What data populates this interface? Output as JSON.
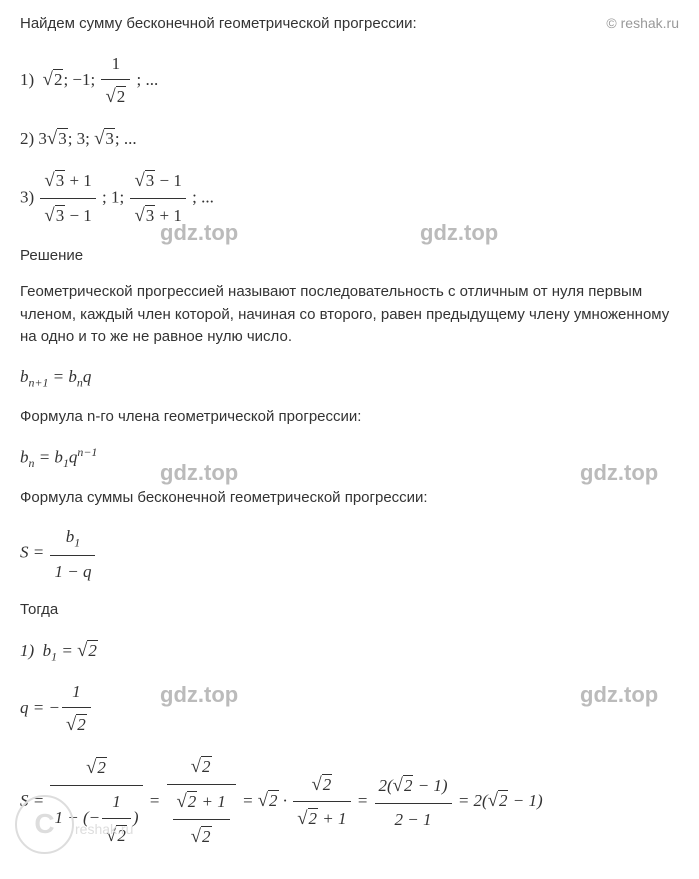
{
  "header": {
    "title": "Найдем сумму бесконечной геометрической прогрессии:",
    "copyright": "© reshak.ru"
  },
  "problems": {
    "p1_num": "1)",
    "p1_seq": "√2; −1; 1/√2 ; ...",
    "p2_num": "2)",
    "p2_seq": "3√3; 3; √3; ...",
    "p3_num": "3)",
    "p3_seq": "(√3+1)/(√3−1); 1; (√3−1)/(√3+1); ..."
  },
  "solution_label": "Решение",
  "theory": {
    "def1": "Геометрической прогрессией называют последовательность с отличным от нуля первым членом, каждый член которой, начиная со второго, равен предыдущему члену умноженному на одно и то же не равное нулю число.",
    "recur": "b_{n+1} = b_n q",
    "nth_label": "Формула n-го члена геометрической прогрессии:",
    "nth": "b_n = b_1 q^{n−1}",
    "sum_label": "Формула суммы бесконечной геометрической прогрессии:",
    "sum": "S = b_1 / (1 − q)",
    "then": "Тогда"
  },
  "calc": {
    "line1": "1) b_1 = √2",
    "line2": "q = −1/√2",
    "line3": "S = √2/(1−(−1/√2)) = √2/((√2+1)/√2) = √2 · √2/(√2+1) = 2(√2−1)/(2−1) = 2(√2−1)"
  },
  "watermark": "gdz.top",
  "logo_letter": "C",
  "logo_text": "reshak.ru",
  "colors": {
    "text": "#333333",
    "watermark": "#bbbbbb",
    "logo": "#dddddd",
    "copyright": "#999999",
    "bg": "#ffffff"
  },
  "fonts": {
    "body_size": 15,
    "math_size": 17,
    "watermark_size": 22
  }
}
